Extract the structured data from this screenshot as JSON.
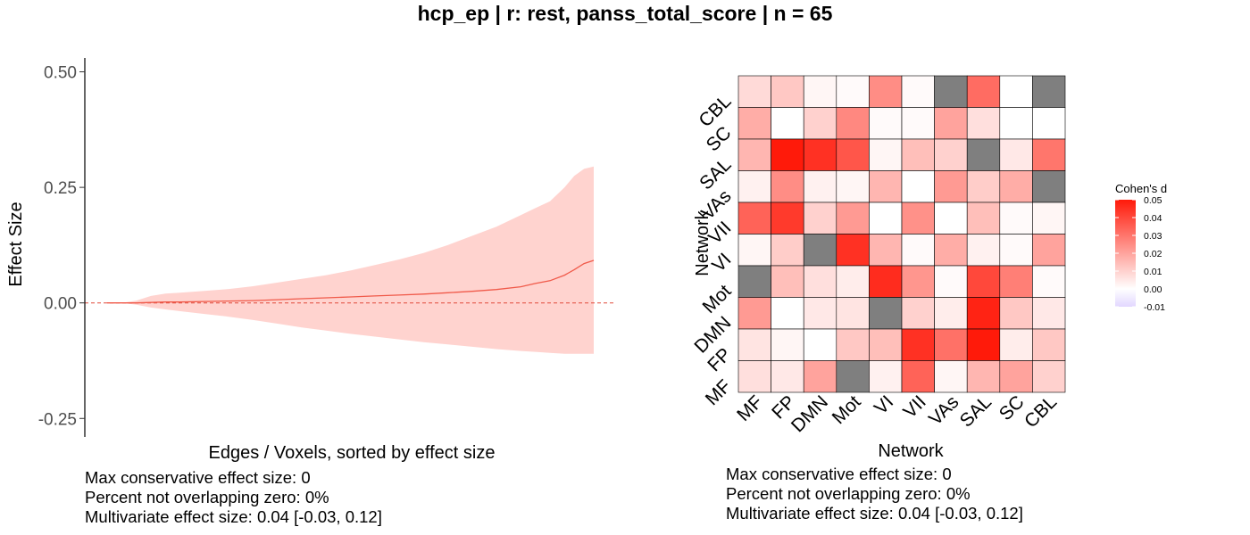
{
  "title": "hcp_ep | r: rest, panss_total_score | n = 65",
  "colors": {
    "band": "#FFD3CF",
    "line": "#F05A4A",
    "zero_line": "#E04A3A",
    "na_cell": "#7F7F7F",
    "cell_border": "#000000"
  },
  "chart_data": [
    {
      "type": "area",
      "xlabel": "Edges / Voxels, sorted by effect size",
      "ylabel": "Effect Size",
      "ylim": [
        -0.29,
        0.53
      ],
      "yticks": [
        -0.25,
        0.0,
        0.25,
        0.5
      ],
      "ytick_labels": [
        "-0.25",
        "0.00",
        "0.25",
        "0.50"
      ],
      "zero_reference_line": true,
      "x": [
        0,
        0.03,
        0.06,
        0.09,
        0.12,
        0.15,
        0.2,
        0.25,
        0.3,
        0.35,
        0.4,
        0.45,
        0.5,
        0.55,
        0.6,
        0.65,
        0.7,
        0.75,
        0.8,
        0.85,
        0.88,
        0.91,
        0.94,
        0.96,
        0.98,
        1.0
      ],
      "series": [
        {
          "role": "estimate",
          "values": [
            0,
            0,
            0,
            0.001,
            0.002,
            0.002,
            0.003,
            0.004,
            0.005,
            0.007,
            0.009,
            0.011,
            0.013,
            0.015,
            0.017,
            0.019,
            0.022,
            0.025,
            0.029,
            0.035,
            0.042,
            0.048,
            0.06,
            0.072,
            0.085,
            0.092
          ]
        },
        {
          "role": "upper",
          "values": [
            0,
            0,
            0.005,
            0.015,
            0.02,
            0.022,
            0.026,
            0.03,
            0.036,
            0.044,
            0.052,
            0.06,
            0.07,
            0.082,
            0.094,
            0.108,
            0.125,
            0.145,
            0.165,
            0.19,
            0.205,
            0.22,
            0.25,
            0.275,
            0.29,
            0.295
          ]
        },
        {
          "role": "lower",
          "values": [
            0,
            0,
            -0.004,
            -0.01,
            -0.014,
            -0.018,
            -0.024,
            -0.03,
            -0.037,
            -0.045,
            -0.053,
            -0.06,
            -0.067,
            -0.073,
            -0.079,
            -0.085,
            -0.09,
            -0.095,
            -0.1,
            -0.104,
            -0.106,
            -0.108,
            -0.11,
            -0.11,
            -0.11,
            -0.11
          ]
        }
      ],
      "stats": {
        "max_conservative": "Max conservative effect size: 0",
        "percent_not_zero": "Percent not overlapping zero: 0%",
        "multivariate": "Multivariate effect size: 0.04 [-0.03, 0.12]"
      }
    },
    {
      "type": "heatmap",
      "xlabel": "Network",
      "ylabel": "Network",
      "x_categories": [
        "MF",
        "FP",
        "DMN",
        "Mot",
        "VI",
        "VII",
        "VAs",
        "SAL",
        "SC",
        "CBL"
      ],
      "y_categories": [
        "CBL",
        "SC",
        "SAL",
        "VAs",
        "VII",
        "VI",
        "Mot",
        "DMN",
        "FP",
        "MF"
      ],
      "values": [
        [
          0.008,
          0.012,
          0.002,
          0.001,
          0.025,
          0.001,
          null,
          0.032,
          0.0,
          null
        ],
        [
          0.018,
          0.0,
          0.01,
          0.026,
          0.001,
          0.001,
          0.02,
          0.007,
          0.0,
          0.0
        ],
        [
          0.016,
          0.05,
          0.045,
          0.037,
          0.002,
          0.014,
          0.01,
          null,
          0.005,
          0.03
        ],
        [
          0.003,
          0.025,
          0.003,
          0.002,
          0.016,
          0.0,
          0.022,
          0.011,
          0.018,
          null
        ],
        [
          0.034,
          0.043,
          0.01,
          0.022,
          0.0,
          0.024,
          0.0,
          0.014,
          0.001,
          0.002
        ],
        [
          0.002,
          0.011,
          null,
          0.045,
          0.016,
          0.001,
          0.018,
          0.003,
          0.001,
          0.02
        ],
        [
          null,
          0.014,
          0.007,
          0.004,
          0.046,
          0.023,
          0.001,
          0.04,
          0.028,
          0.001
        ],
        [
          0.022,
          0.0,
          0.005,
          0.006,
          null,
          0.01,
          0.004,
          0.048,
          0.012,
          0.005
        ],
        [
          0.006,
          0.002,
          0.0,
          0.012,
          0.014,
          0.045,
          0.031,
          0.053,
          0.004,
          0.012
        ],
        [
          0.007,
          0.005,
          0.02,
          null,
          0.003,
          0.034,
          0.002,
          0.016,
          0.02,
          0.01
        ]
      ],
      "colorscale": {
        "min": -0.01,
        "max": 0.05,
        "low": "#E2D7FF",
        "mid": "#FFFFFF",
        "high": "#FF1A0A"
      },
      "legend": {
        "title": "Cohen's d",
        "tick_labels": [
          "0.05",
          "0.04",
          "0.03",
          "0.02",
          "0.01",
          "0.00",
          "-0.01"
        ],
        "tick_values": [
          0.05,
          0.04,
          0.03,
          0.02,
          0.01,
          0.0,
          -0.01
        ],
        "placement": "right"
      },
      "stats": {
        "max_conservative": "Max conservative effect size: 0",
        "percent_not_zero": "Percent not overlapping zero: 0%",
        "multivariate": "Multivariate effect size: 0.04 [-0.03, 0.12]"
      }
    }
  ]
}
